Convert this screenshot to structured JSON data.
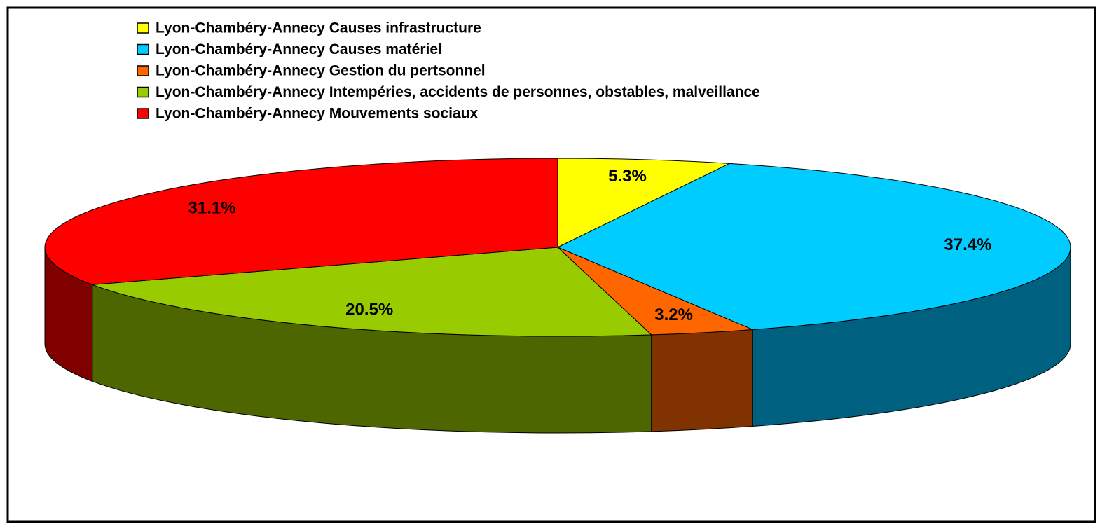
{
  "chart_data": {
    "type": "pie",
    "categories": [
      "Lyon-Chambéry-Annecy Causes infrastructure",
      "Lyon-Chambéry-Annecy Causes matériel",
      "Lyon-Chambéry-Annecy Gestion du pertsonnel",
      "Lyon-Chambéry-Annecy Intempéries, accidents de personnes, obstables, malveillance",
      "Lyon-Chambéry-Annecy Mouvements sociaux"
    ],
    "values": [
      5.3,
      37.4,
      3.2,
      20.5,
      31.1
    ],
    "value_labels": [
      "5.3%",
      "37.4%",
      "3.2%",
      "20.5%",
      "31.1%"
    ],
    "colors": [
      "#ffff00",
      "#00ccff",
      "#ff6600",
      "#99cc00",
      "#ff0000"
    ],
    "side_colors": [
      "#808000",
      "#006080",
      "#803300",
      "#4d6600",
      "#800000"
    ]
  }
}
